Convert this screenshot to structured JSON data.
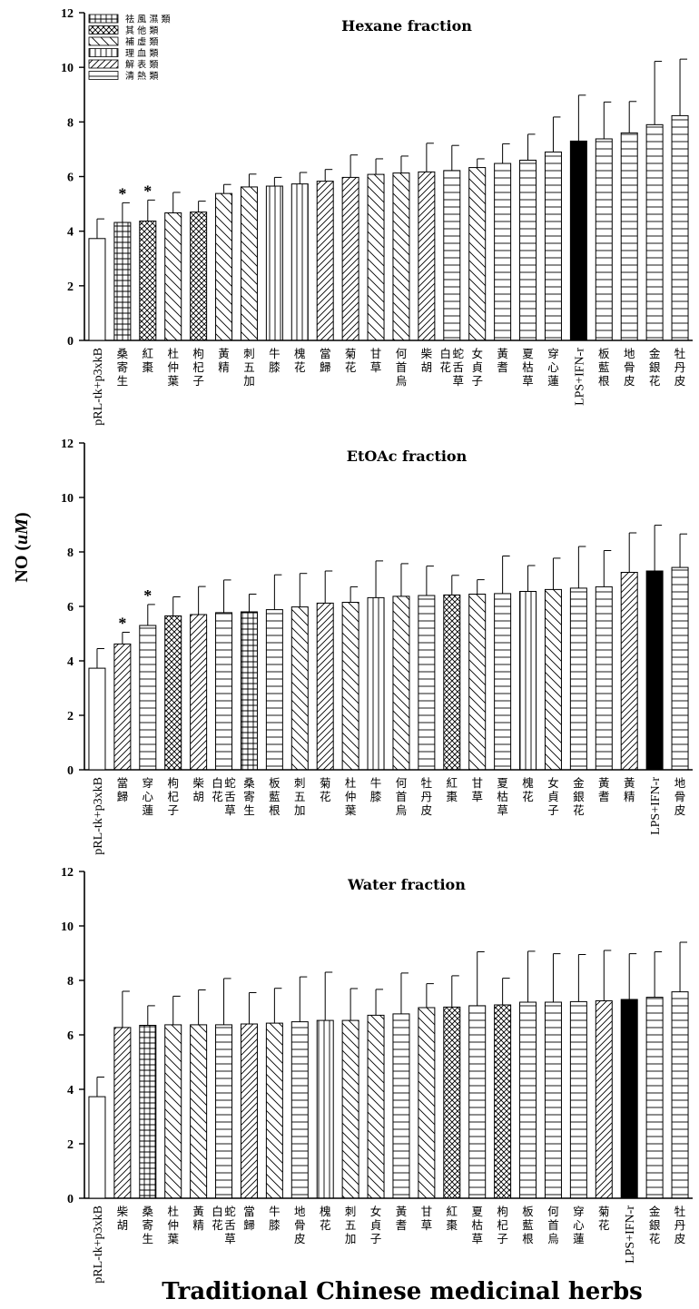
{
  "figure": {
    "ylabel": "NO (uM)",
    "ylabel_plain": "NO (",
    "ylabel_unit": "uM",
    "ylabel_close": ")",
    "xlabel": "Traditional Chinese medicinal herbs"
  },
  "legend": {
    "entries": [
      {
        "label": "祛 風 濕 類",
        "pattern": "grid"
      },
      {
        "label": "其 他 類",
        "pattern": "cross"
      },
      {
        "label": "補 虛 類",
        "pattern": "back"
      },
      {
        "label": "理 血 類",
        "pattern": "vert"
      },
      {
        "label": "解 表 類",
        "pattern": "fwd"
      },
      {
        "label": "清 熱 類",
        "pattern": "horz"
      }
    ]
  },
  "chart_data": [
    {
      "type": "bar",
      "title": "Hexane fraction",
      "ylim": [
        0,
        12
      ],
      "yticks": [
        0,
        2,
        4,
        6,
        8,
        10,
        12
      ],
      "categories": [
        "pRL-tk+p3xkB",
        "桑寄生",
        "紅棗",
        "杜仲葉",
        "枸杞子",
        "黃精",
        "刺五加",
        "牛膝",
        "槐花",
        "當歸",
        "菊花",
        "甘草",
        "何首烏",
        "柴胡",
        "白花蛇舌草",
        "女貞子",
        "黃耆",
        "夏枯草",
        "穿心蓮",
        "LPS+IFN-r",
        "板藍根",
        "地骨皮",
        "金銀花",
        "牡丹皮"
      ],
      "values": [
        3.73,
        4.32,
        4.37,
        4.67,
        4.7,
        5.38,
        5.62,
        5.65,
        5.73,
        5.83,
        5.97,
        6.08,
        6.13,
        6.17,
        6.22,
        6.33,
        6.48,
        6.6,
        6.9,
        7.3,
        7.38,
        7.6,
        7.9,
        8.23
      ],
      "errors": [
        0.72,
        0.72,
        0.77,
        0.75,
        0.4,
        0.33,
        0.47,
        0.32,
        0.42,
        0.43,
        0.82,
        0.57,
        0.62,
        1.05,
        0.92,
        0.32,
        0.72,
        0.95,
        1.28,
        1.68,
        1.35,
        1.15,
        2.32,
        2.07
      ],
      "patterns": [
        "blank",
        "grid",
        "cross",
        "back",
        "cross",
        "back",
        "back",
        "vert",
        "vert",
        "fwd",
        "fwd",
        "back",
        "back",
        "fwd",
        "horz",
        "back",
        "horz",
        "horz",
        "horz",
        "solid",
        "horz",
        "horz",
        "horz",
        "horz"
      ],
      "significant": [
        1,
        2
      ]
    },
    {
      "type": "bar",
      "title": "EtOAc fraction",
      "ylim": [
        0,
        12
      ],
      "yticks": [
        0,
        2,
        4,
        6,
        8,
        10,
        12
      ],
      "categories": [
        "pRL-tk+p3xkB",
        "當歸",
        "穿心蓮",
        "枸杞子",
        "柴胡",
        "白花蛇舌草",
        "桑寄生",
        "板藍根",
        "刺五加",
        "菊花",
        "杜仲葉",
        "牛膝",
        "何首烏",
        "牡丹皮",
        "紅棗",
        "甘草",
        "夏枯草",
        "槐花",
        "女貞子",
        "金銀花",
        "黃耆",
        "黃精",
        "LPS+IFN-r",
        "地骨皮"
      ],
      "values": [
        3.73,
        4.62,
        5.3,
        5.65,
        5.7,
        5.77,
        5.8,
        5.88,
        5.98,
        6.12,
        6.15,
        6.32,
        6.37,
        6.4,
        6.42,
        6.45,
        6.47,
        6.55,
        6.62,
        6.67,
        6.72,
        7.25,
        7.3,
        7.43
      ],
      "errors": [
        0.72,
        0.43,
        0.77,
        0.7,
        1.03,
        1.2,
        0.65,
        1.28,
        1.23,
        1.18,
        0.57,
        1.35,
        1.2,
        1.08,
        0.72,
        0.53,
        1.38,
        0.95,
        1.15,
        1.53,
        1.33,
        1.45,
        1.68,
        1.23
      ],
      "patterns": [
        "blank",
        "fwd",
        "horz",
        "cross",
        "fwd",
        "horz",
        "grid",
        "horz",
        "back",
        "fwd",
        "back",
        "vert",
        "back",
        "horz",
        "cross",
        "back",
        "horz",
        "vert",
        "back",
        "horz",
        "horz",
        "fwd",
        "solid",
        "horz"
      ],
      "significant": [
        1,
        2
      ]
    },
    {
      "type": "bar",
      "title": "Water fraction",
      "ylim": [
        0,
        12
      ],
      "yticks": [
        0,
        2,
        4,
        6,
        8,
        10,
        12
      ],
      "categories": [
        "pRL-tk+p3xkB",
        "柴胡",
        "桑寄生",
        "杜仲葉",
        "黃精",
        "白花蛇舌草",
        "當歸",
        "牛膝",
        "地骨皮",
        "槐花",
        "刺五加",
        "女貞子",
        "黃耆",
        "甘草",
        "紅棗",
        "夏枯草",
        "枸杞子",
        "板藍根",
        "何首烏",
        "穿心蓮",
        "菊花",
        "LPS+IFN-r",
        "金銀花",
        "牡丹皮"
      ],
      "values": [
        3.73,
        6.27,
        6.35,
        6.37,
        6.37,
        6.37,
        6.4,
        6.43,
        6.48,
        6.53,
        6.53,
        6.72,
        6.77,
        7.0,
        7.02,
        7.07,
        7.1,
        7.2,
        7.2,
        7.22,
        7.25,
        7.3,
        7.38,
        7.58
      ],
      "errors": [
        0.72,
        1.33,
        0.72,
        1.05,
        1.28,
        1.7,
        1.15,
        1.28,
        1.65,
        1.77,
        1.17,
        0.95,
        1.5,
        0.88,
        1.15,
        1.98,
        0.98,
        1.87,
        1.78,
        1.73,
        1.85,
        1.68,
        1.67,
        1.82
      ],
      "patterns": [
        "blank",
        "fwd",
        "grid",
        "back",
        "back",
        "horz",
        "fwd",
        "back",
        "horz",
        "vert",
        "back",
        "back",
        "horz",
        "back",
        "cross",
        "horz",
        "cross",
        "horz",
        "horz",
        "horz",
        "fwd",
        "solid",
        "horz",
        "horz"
      ],
      "significant": []
    }
  ]
}
